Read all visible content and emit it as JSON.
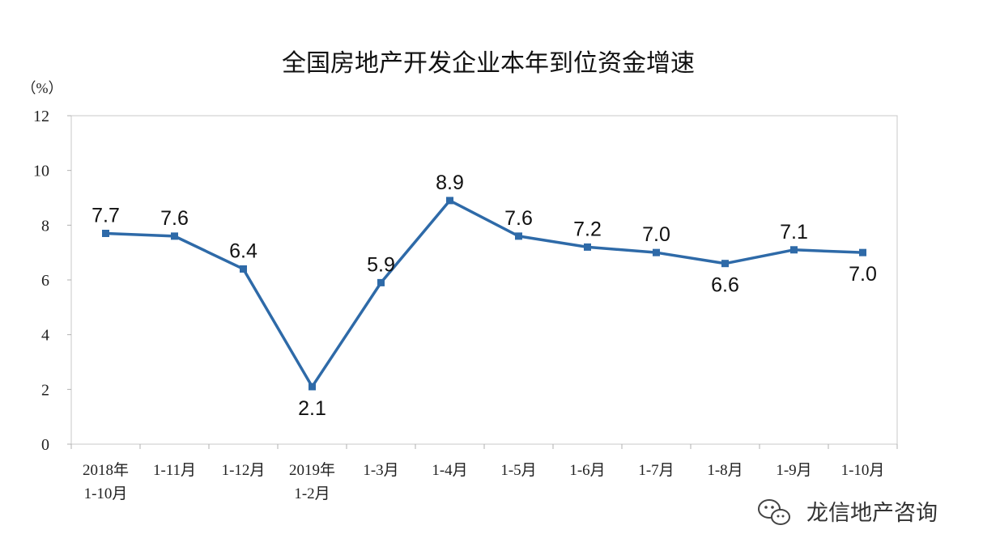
{
  "chart_data": {
    "type": "line",
    "title": "全国房地产开发企业本年到位资金增速",
    "unit_label": "（%）",
    "categories": [
      [
        "2018年",
        "1-10月"
      ],
      [
        "1-11月"
      ],
      [
        "1-12月"
      ],
      [
        "2019年",
        "1-2月"
      ],
      [
        "1-3月"
      ],
      [
        "1-4月"
      ],
      [
        "1-5月"
      ],
      [
        "1-6月"
      ],
      [
        "1-7月"
      ],
      [
        "1-8月"
      ],
      [
        "1-9月"
      ],
      [
        "1-10月"
      ]
    ],
    "values": [
      7.7,
      7.6,
      6.4,
      2.1,
      5.9,
      8.9,
      7.6,
      7.2,
      7.0,
      6.6,
      7.1,
      7.0
    ],
    "data_labels": [
      "7.7",
      "7.6",
      "6.4",
      "2.1",
      "5.9",
      "8.9",
      "7.6",
      "7.2",
      "7.0",
      "6.6",
      "7.1",
      "7.0"
    ],
    "ylim": [
      0,
      12
    ],
    "yticks": [
      0,
      2,
      4,
      6,
      8,
      10,
      12
    ],
    "grid": false,
    "legend": "none",
    "line_color": "#2e6aa8"
  },
  "watermark": {
    "icon": "wechat-icon",
    "text": "龙信地产咨询"
  }
}
